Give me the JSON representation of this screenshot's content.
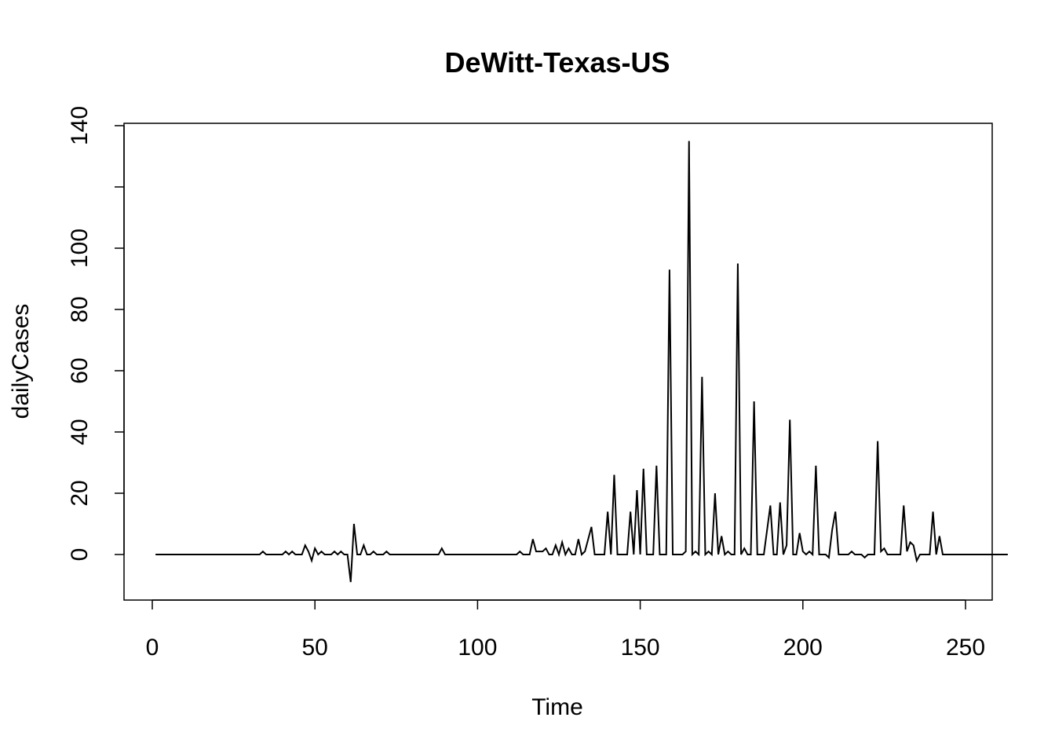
{
  "chart_data": {
    "type": "line",
    "title": "DeWitt-Texas-US",
    "xlabel": "Time",
    "ylabel": "dailyCases",
    "xlim": [
      1,
      248
    ],
    "ylim": [
      -9,
      135
    ],
    "x_ticks": [
      0,
      50,
      100,
      150,
      200,
      250
    ],
    "y_ticks": [
      0,
      20,
      40,
      60,
      80,
      100,
      120,
      140
    ],
    "y_tick_labels": [
      "0",
      "20",
      "40",
      "60",
      "80",
      "100",
      "",
      "140"
    ],
    "grid": false,
    "legend": "none",
    "series": [
      {
        "start_x": 1,
        "values": [
          0,
          0,
          0,
          0,
          0,
          0,
          0,
          0,
          0,
          0,
          0,
          0,
          0,
          0,
          0,
          0,
          0,
          0,
          0,
          0,
          0,
          0,
          0,
          0,
          0,
          0,
          0,
          0,
          0,
          0,
          0,
          0,
          0,
          1,
          0,
          0,
          0,
          0,
          0,
          0,
          1,
          0,
          1,
          0,
          0,
          0,
          3,
          1,
          -2,
          2,
          0,
          1,
          0,
          0,
          0,
          1,
          0,
          1,
          0,
          0,
          -9,
          10,
          0,
          0,
          3,
          0,
          0,
          1,
          0,
          0,
          0,
          1,
          0,
          0,
          0,
          0,
          0,
          0,
          0,
          0,
          0,
          0,
          0,
          0,
          0,
          0,
          0,
          0,
          2,
          0,
          0,
          0,
          0,
          0,
          0,
          0,
          0,
          0,
          0,
          0,
          0,
          0,
          0,
          0,
          0,
          0,
          0,
          0,
          0,
          0,
          0,
          0,
          1,
          0,
          0,
          0,
          5,
          1,
          1,
          1,
          2,
          0,
          0,
          3,
          0,
          4,
          0,
          2,
          0,
          0,
          5,
          0,
          1,
          5,
          9,
          0,
          0,
          0,
          0,
          14,
          0,
          26,
          0,
          0,
          0,
          0,
          14,
          0,
          21,
          0,
          28,
          0,
          0,
          0,
          29,
          0,
          0,
          0,
          93,
          0,
          0,
          0,
          0,
          1,
          135,
          0,
          1,
          0,
          58,
          0,
          1,
          0,
          20,
          0,
          6,
          0,
          1,
          0,
          0,
          95,
          0,
          2,
          0,
          0,
          50,
          0,
          0,
          0,
          8,
          16,
          0,
          0,
          17,
          0,
          3,
          44,
          0,
          0,
          7,
          1,
          0,
          1,
          0,
          29,
          0,
          0,
          0,
          -1,
          8,
          14,
          0,
          0,
          0,
          0,
          1,
          0,
          0,
          0,
          -1,
          0,
          0,
          0,
          37,
          1,
          2,
          0,
          0,
          0,
          0,
          0,
          16,
          1,
          4,
          3,
          -2,
          0,
          0,
          0,
          0,
          14,
          0,
          6,
          0,
          0,
          0,
          0,
          0,
          0,
          0,
          0,
          0,
          0,
          0,
          0,
          0,
          0,
          0,
          0,
          0,
          0,
          0,
          0,
          0
        ]
      }
    ]
  }
}
